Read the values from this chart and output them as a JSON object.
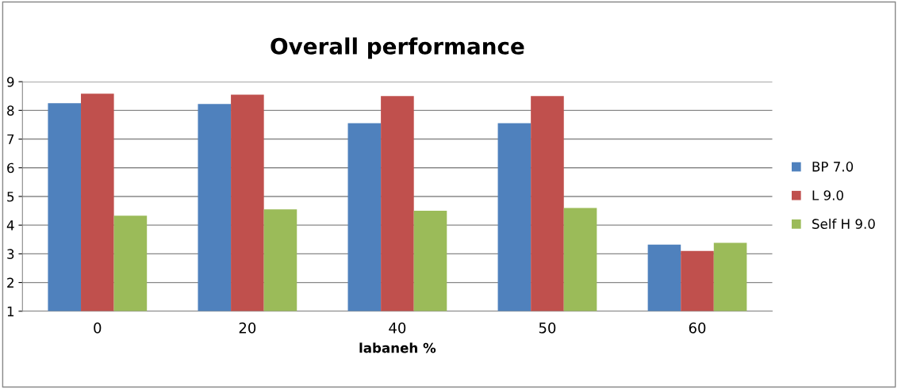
{
  "chart_data": {
    "type": "bar",
    "title": "Overall performance",
    "xlabel": "labaneh %",
    "categories": [
      "0",
      "20",
      "40",
      "50",
      "60"
    ],
    "series": [
      {
        "name": "BP 7.0",
        "color": "#4f81bd",
        "values": [
          8.25,
          8.22,
          7.55,
          7.55,
          3.32
        ]
      },
      {
        "name": "L 9.0",
        "color": "#c0504d",
        "values": [
          8.58,
          8.55,
          8.5,
          8.5,
          3.1
        ]
      },
      {
        "name": "Self H 9.0",
        "color": "#9bbb59",
        "values": [
          4.33,
          4.55,
          4.5,
          4.6,
          3.38
        ]
      }
    ],
    "ylim": [
      1,
      9
    ],
    "yticks": [
      1,
      2,
      3,
      4,
      5,
      6,
      7,
      8,
      9
    ],
    "grid": "y",
    "legend": "right"
  }
}
